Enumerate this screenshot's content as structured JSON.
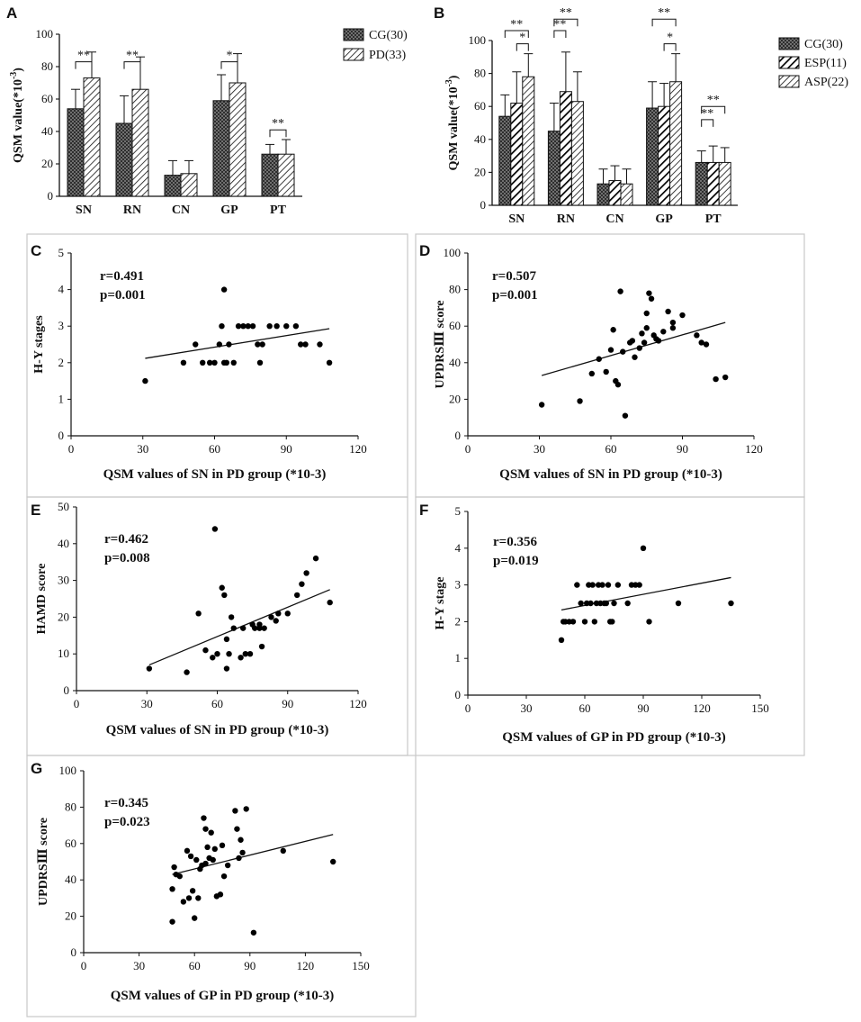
{
  "chart_data": [
    {
      "panel": "A",
      "type": "bar",
      "ylabel": "QSM value(*10",
      "ylabel_sup": "-3",
      "ylabel_close": ")",
      "ylim": [
        0,
        100
      ],
      "yticks": [
        0,
        20,
        40,
        60,
        80,
        100
      ],
      "categories": [
        "SN",
        "RN",
        "CN",
        "GP",
        "PT"
      ],
      "series": [
        {
          "name": "CG(30)",
          "pattern": "checker",
          "values": [
            54,
            45,
            13,
            59,
            26
          ],
          "errors": [
            12,
            17,
            9,
            16,
            6
          ]
        },
        {
          "name": "PD(33)",
          "pattern": "diag-light",
          "values": [
            73,
            66,
            14,
            70,
            26
          ],
          "errors": [
            16,
            20,
            8,
            18,
            9
          ]
        }
      ],
      "significance": [
        {
          "label": "**",
          "cat": 0,
          "a": 0,
          "b": 1,
          "y": 83
        },
        {
          "label": "**",
          "cat": 1,
          "a": 0,
          "b": 1,
          "y": 83
        },
        {
          "label": "*",
          "cat": 3,
          "a": 0,
          "b": 1,
          "y": 83
        },
        {
          "label": "**",
          "cat": 4,
          "a": 0,
          "b": 1,
          "y": 41
        }
      ]
    },
    {
      "panel": "B",
      "type": "bar",
      "ylabel": "QSM value(*10",
      "ylabel_sup": "-3",
      "ylabel_close": ")",
      "ylim": [
        0,
        100
      ],
      "yticks": [
        0,
        20,
        40,
        60,
        80,
        100
      ],
      "categories": [
        "SN",
        "RN",
        "CN",
        "GP",
        "PT"
      ],
      "series": [
        {
          "name": "CG(30)",
          "pattern": "checker",
          "values": [
            54,
            45,
            13,
            59,
            26
          ],
          "errors": [
            13,
            17,
            9,
            16,
            7
          ]
        },
        {
          "name": "ESP(11)",
          "pattern": "diag-bold",
          "values": [
            62,
            69,
            15,
            60,
            26
          ],
          "errors": [
            19,
            24,
            9,
            14,
            10
          ]
        },
        {
          "name": "ASP(22)",
          "pattern": "diag-light",
          "values": [
            78,
            63,
            13,
            75,
            26
          ],
          "errors": [
            14,
            18,
            9,
            17,
            9
          ]
        }
      ],
      "significance": [
        {
          "label": "**",
          "cat": 0,
          "a": 0,
          "b": 2,
          "y": 106
        },
        {
          "label": "*",
          "cat": 0,
          "a": 1,
          "b": 2,
          "y": 98
        },
        {
          "label": "**",
          "cat": 1,
          "a": 0,
          "b": 2,
          "y": 113
        },
        {
          "label": "**",
          "cat": 1,
          "a": 0,
          "b": 1,
          "y": 106
        },
        {
          "label": "**",
          "cat": 3,
          "a": 0,
          "b": 2,
          "y": 113
        },
        {
          "label": "*",
          "cat": 3,
          "a": 1,
          "b": 2,
          "y": 98
        },
        {
          "label": "**",
          "cat": 4,
          "a": 0,
          "b": 2,
          "y": 60
        },
        {
          "label": "**",
          "cat": 4,
          "a": 0,
          "b": 1,
          "y": 52
        }
      ]
    },
    {
      "panel": "C",
      "type": "scatter",
      "r": "r=0.491",
      "p": "p=0.001",
      "ylabel": "H-Y stages",
      "xlabel": "QSM values of SN in PD group (*10-3)",
      "xlim": [
        0,
        120
      ],
      "xticks": [
        0,
        30,
        60,
        90,
        120
      ],
      "ylim": [
        0,
        5
      ],
      "yticks": [
        0,
        1,
        2,
        3,
        4,
        5
      ],
      "points": [
        [
          31,
          1.5
        ],
        [
          47,
          2
        ],
        [
          52,
          2.5
        ],
        [
          55,
          2
        ],
        [
          58,
          2
        ],
        [
          60,
          2
        ],
        [
          62,
          2.5
        ],
        [
          63,
          3
        ],
        [
          64,
          2
        ],
        [
          64,
          4
        ],
        [
          65,
          2
        ],
        [
          66,
          2.5
        ],
        [
          68,
          2
        ],
        [
          70,
          3
        ],
        [
          72,
          3
        ],
        [
          74,
          3
        ],
        [
          76,
          3
        ],
        [
          78,
          2.5
        ],
        [
          79,
          2
        ],
        [
          80,
          2.5
        ],
        [
          83,
          3
        ],
        [
          86,
          3
        ],
        [
          90,
          3
        ],
        [
          94,
          3
        ],
        [
          96,
          2.5
        ],
        [
          98,
          2.5
        ],
        [
          104,
          2.5
        ],
        [
          108,
          2
        ]
      ],
      "fit": [
        [
          31,
          2.12
        ],
        [
          108,
          2.93
        ]
      ]
    },
    {
      "panel": "D",
      "type": "scatter",
      "r": "r=0.507",
      "p": "p=0.001",
      "ylabel": "UPDRSⅢ score",
      "xlabel": "QSM values of SN in PD group (*10-3)",
      "xlim": [
        0,
        120
      ],
      "xticks": [
        0,
        30,
        60,
        90,
        120
      ],
      "ylim": [
        0,
        100
      ],
      "yticks": [
        0,
        20,
        40,
        60,
        80,
        100
      ],
      "points": [
        [
          31,
          17
        ],
        [
          47,
          19
        ],
        [
          52,
          34
        ],
        [
          55,
          42
        ],
        [
          58,
          35
        ],
        [
          60,
          47
        ],
        [
          61,
          58
        ],
        [
          62,
          30
        ],
        [
          63,
          28
        ],
        [
          64,
          79
        ],
        [
          65,
          46
        ],
        [
          66,
          11
        ],
        [
          68,
          51
        ],
        [
          69,
          52
        ],
        [
          70,
          43
        ],
        [
          72,
          48
        ],
        [
          73,
          56
        ],
        [
          74,
          51
        ],
        [
          75,
          67
        ],
        [
          75,
          59
        ],
        [
          76,
          78
        ],
        [
          77,
          75
        ],
        [
          78,
          55
        ],
        [
          79,
          53
        ],
        [
          80,
          52
        ],
        [
          82,
          57
        ],
        [
          84,
          68
        ],
        [
          86,
          62
        ],
        [
          86,
          59
        ],
        [
          90,
          66
        ],
        [
          96,
          55
        ],
        [
          98,
          51
        ],
        [
          100,
          50
        ],
        [
          104,
          31
        ],
        [
          108,
          32
        ]
      ],
      "fit": [
        [
          31,
          33
        ],
        [
          108,
          62
        ]
      ]
    },
    {
      "panel": "E",
      "type": "scatter",
      "r": "r=0.462",
      "p": "p=0.008",
      "ylabel": "HAMD score",
      "xlabel": "QSM values of SN in PD group (*10-3)",
      "xlim": [
        0,
        120
      ],
      "xticks": [
        0,
        30,
        60,
        90,
        120
      ],
      "ylim": [
        0,
        50
      ],
      "yticks": [
        0,
        10,
        20,
        30,
        40,
        50
      ],
      "points": [
        [
          31,
          6
        ],
        [
          47,
          5
        ],
        [
          52,
          21
        ],
        [
          55,
          11
        ],
        [
          58,
          9
        ],
        [
          59,
          44
        ],
        [
          60,
          10
        ],
        [
          62,
          28
        ],
        [
          63,
          26
        ],
        [
          64,
          14
        ],
        [
          64,
          6
        ],
        [
          65,
          10
        ],
        [
          66,
          20
        ],
        [
          67,
          17
        ],
        [
          70,
          9
        ],
        [
          71,
          17
        ],
        [
          72,
          10
        ],
        [
          74,
          10
        ],
        [
          75,
          18
        ],
        [
          76,
          17
        ],
        [
          78,
          18
        ],
        [
          78,
          17
        ],
        [
          79,
          12
        ],
        [
          80,
          17
        ],
        [
          83,
          20
        ],
        [
          85,
          19
        ],
        [
          86,
          21
        ],
        [
          90,
          21
        ],
        [
          94,
          26
        ],
        [
          96,
          29
        ],
        [
          98,
          32
        ],
        [
          102,
          36
        ],
        [
          108,
          24
        ]
      ],
      "fit": [
        [
          31,
          7
        ],
        [
          108,
          27.5
        ]
      ]
    },
    {
      "panel": "F",
      "type": "scatter",
      "r": "r=0.356",
      "p": "p=0.019",
      "ylabel": "H-Y stage",
      "xlabel": "QSM values of GP in PD group (*10-3)",
      "xlim": [
        0,
        150
      ],
      "xticks": [
        0,
        30,
        60,
        90,
        120,
        150
      ],
      "ylim": [
        0,
        5
      ],
      "yticks": [
        0,
        1,
        2,
        3,
        4,
        5
      ],
      "points": [
        [
          48,
          1.5
        ],
        [
          49,
          2
        ],
        [
          50,
          2
        ],
        [
          52,
          2
        ],
        [
          54,
          2
        ],
        [
          56,
          3
        ],
        [
          58,
          2.5
        ],
        [
          60,
          2
        ],
        [
          61,
          2.5
        ],
        [
          62,
          3
        ],
        [
          63,
          2.5
        ],
        [
          64,
          3
        ],
        [
          65,
          2
        ],
        [
          66,
          2.5
        ],
        [
          67,
          3
        ],
        [
          68,
          2.5
        ],
        [
          69,
          3
        ],
        [
          70,
          2.5
        ],
        [
          71,
          2.5
        ],
        [
          72,
          3
        ],
        [
          73,
          2
        ],
        [
          74,
          2
        ],
        [
          75,
          2.5
        ],
        [
          77,
          3
        ],
        [
          82,
          2.5
        ],
        [
          84,
          3
        ],
        [
          86,
          3
        ],
        [
          88,
          3
        ],
        [
          90,
          4
        ],
        [
          93,
          2
        ],
        [
          108,
          2.5
        ],
        [
          135,
          2.5
        ]
      ],
      "fit": [
        [
          48,
          2.32
        ],
        [
          135,
          3.2
        ]
      ]
    },
    {
      "panel": "G",
      "type": "scatter",
      "r": "r=0.345",
      "p": "p=0.023",
      "ylabel": "UPDRSⅢ score",
      "xlabel": "QSM values of GP in PD group (*10-3)",
      "xlim": [
        0,
        150
      ],
      "xticks": [
        0,
        30,
        60,
        90,
        120,
        150
      ],
      "ylim": [
        0,
        100
      ],
      "yticks": [
        0,
        20,
        40,
        60,
        80,
        100
      ],
      "points": [
        [
          48,
          17
        ],
        [
          48,
          35
        ],
        [
          49,
          47
        ],
        [
          50,
          43
        ],
        [
          52,
          42
        ],
        [
          54,
          28
        ],
        [
          56,
          56
        ],
        [
          57,
          30
        ],
        [
          58,
          53
        ],
        [
          59,
          34
        ],
        [
          60,
          19
        ],
        [
          61,
          51
        ],
        [
          62,
          30
        ],
        [
          63,
          46
        ],
        [
          64,
          48
        ],
        [
          65,
          74
        ],
        [
          66,
          49
        ],
        [
          66,
          68
        ],
        [
          67,
          58
        ],
        [
          68,
          52
        ],
        [
          69,
          66
        ],
        [
          70,
          51
        ],
        [
          71,
          57
        ],
        [
          72,
          31
        ],
        [
          74,
          32
        ],
        [
          75,
          59
        ],
        [
          76,
          42
        ],
        [
          78,
          48
        ],
        [
          82,
          78
        ],
        [
          83,
          68
        ],
        [
          84,
          52
        ],
        [
          85,
          62
        ],
        [
          86,
          55
        ],
        [
          88,
          79
        ],
        [
          92,
          11
        ],
        [
          108,
          56
        ],
        [
          135,
          50
        ]
      ],
      "fit": [
        [
          48,
          43
        ],
        [
          135,
          65
        ]
      ]
    }
  ]
}
